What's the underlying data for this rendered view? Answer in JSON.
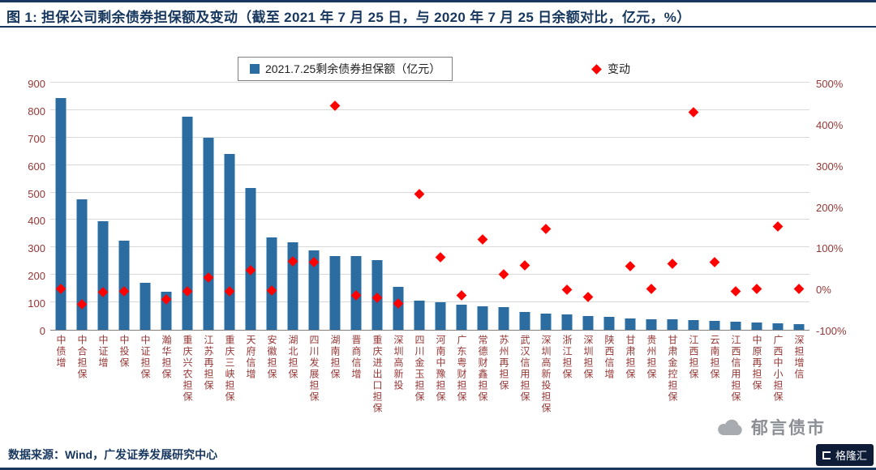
{
  "header": {
    "title": "图 1: 担保公司剩余债券担保额及变动（截至 2021 年 7 月 25 日，与 2020 年 7 月 25 日余额对比，亿元，%）"
  },
  "chart_data": {
    "type": "bar",
    "title": "担保公司剩余债券担保额及变动",
    "legend_position": "top",
    "grid": true,
    "legend": [
      {
        "label": "2021.7.25剩余债券担保额（亿元）",
        "marker": "square",
        "color": "#2B6DA0"
      },
      {
        "label": "变动",
        "marker": "diamond",
        "color": "#FF0000"
      }
    ],
    "categories": [
      "中债增",
      "中合担保",
      "中证增",
      "中投保",
      "中证担保",
      "瀚华担保",
      "重庆兴农担保",
      "江苏再担保",
      "重庆三峡担保",
      "天府信增",
      "安徽担保",
      "湖北担保",
      "四川发展担保",
      "湖南担保",
      "晋商信增",
      "重庆进出口担保",
      "深圳高新投",
      "四川金玉担保",
      "河南中豫担保",
      "广东粤财担保",
      "常德财鑫担保",
      "苏州再担保",
      "武汉信用担保",
      "深圳高新投担保",
      "浙江担保",
      "深圳担保",
      "陕西信增",
      "甘肃担保",
      "贵州担保",
      "甘肃金控担保",
      "江西担保",
      "云南担保",
      "江西信用担保",
      "中原再担保",
      "广西中小担保",
      "深担增信"
    ],
    "series": [
      {
        "name": "2021.7.25剩余债券担保额（亿元）",
        "type": "bar",
        "axis": "left",
        "values": [
          845,
          475,
          395,
          325,
          170,
          140,
          775,
          700,
          640,
          515,
          335,
          320,
          290,
          270,
          268,
          255,
          155,
          105,
          100,
          92,
          86,
          83,
          65,
          60,
          56,
          50,
          46,
          42,
          39,
          38,
          35,
          32,
          30,
          27,
          24,
          21
        ]
      },
      {
        "name": "变动",
        "type": "scatter",
        "axis": "right",
        "unit": "%",
        "values": [
          0,
          -38,
          -8,
          -5,
          null,
          -25,
          -5,
          28,
          -6,
          45,
          -3,
          68,
          65,
          445,
          -15,
          -22,
          -35,
          230,
          78,
          -15,
          120,
          35,
          58,
          145,
          -2,
          -20,
          null,
          55,
          0,
          62,
          430,
          65,
          -5,
          0,
          152,
          0
        ]
      }
    ],
    "left_axis": {
      "min": 0,
      "max": 900,
      "step": 100,
      "ticks": [
        900,
        800,
        700,
        600,
        500,
        400,
        300,
        200,
        100,
        0
      ]
    },
    "right_axis": {
      "min": -100,
      "max": 500,
      "step": 100,
      "tick_labels": [
        "500%",
        "400%",
        "300%",
        "200%",
        "100%",
        "0%",
        "-100%"
      ]
    },
    "colors": {
      "bar": "#2B6DA0",
      "marker": "#FF0000",
      "axis_text": "#953735",
      "title": "#17375E",
      "grid": "#D9D9D9"
    }
  },
  "footer": {
    "source": "数据来源：Wind，广发证券发展研究中心"
  },
  "watermark": {
    "brand": "郁言债市",
    "badge": "格隆汇"
  }
}
